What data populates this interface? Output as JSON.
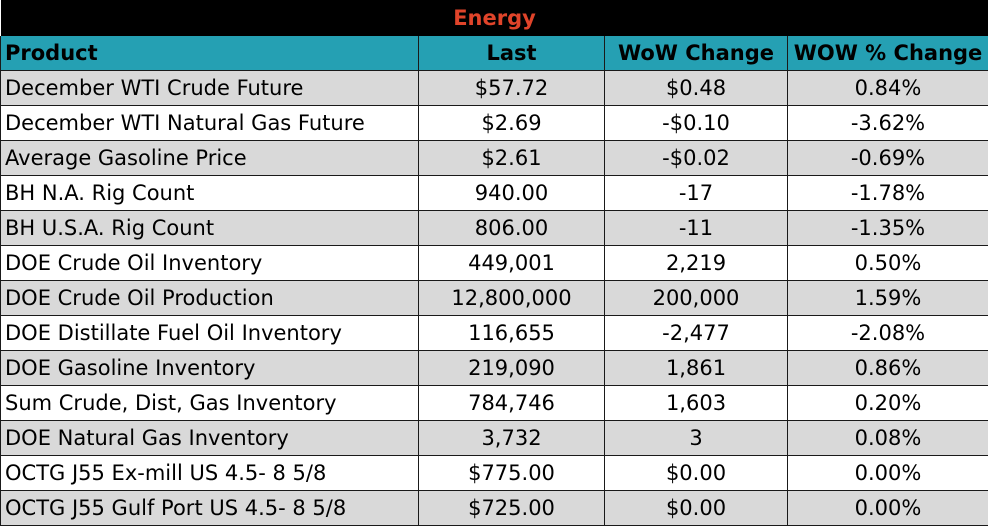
{
  "title": "Energy",
  "headers": [
    "Product",
    "Last",
    "WoW Change",
    "WOW % Change"
  ],
  "rows": [
    [
      "December WTI Crude Future",
      "$57.72",
      "$0.48",
      "0.84%"
    ],
    [
      "December WTI Natural Gas Future",
      "$2.69",
      "-$0.10",
      "-3.62%"
    ],
    [
      "Average Gasoline Price",
      "$2.61",
      "-$0.02",
      "-0.69%"
    ],
    [
      "BH N.A. Rig Count",
      "940.00",
      "-17",
      "-1.78%"
    ],
    [
      "BH U.S.A. Rig Count",
      "806.00",
      "-11",
      "-1.35%"
    ],
    [
      "DOE Crude Oil Inventory",
      "449,001",
      "2,219",
      "0.50%"
    ],
    [
      "DOE Crude Oil Production",
      "12,800,000",
      "200,000",
      "1.59%"
    ],
    [
      "DOE Distillate Fuel Oil Inventory",
      "116,655",
      "-2,477",
      "-2.08%"
    ],
    [
      "DOE Gasoline Inventory",
      "219,090",
      "1,861",
      "0.86%"
    ],
    [
      "Sum Crude, Dist, Gas Inventory",
      "784,746",
      "1,603",
      "0.20%"
    ],
    [
      "DOE Natural Gas Inventory",
      "3,732",
      "3",
      "0.08%"
    ],
    [
      "OCTG J55 Ex-mill US 4.5- 8 5/8",
      "$775.00",
      "$0.00",
      "0.00%"
    ],
    [
      "OCTG J55 Gulf Port US 4.5- 8 5/8",
      "$725.00",
      "$0.00",
      "0.00%"
    ]
  ],
  "colors": {
    "title_bg": "#000000",
    "title_text": "#e0442a",
    "header_bg": "#25a0b3",
    "row_alt_bg": "#d9d9d9"
  }
}
